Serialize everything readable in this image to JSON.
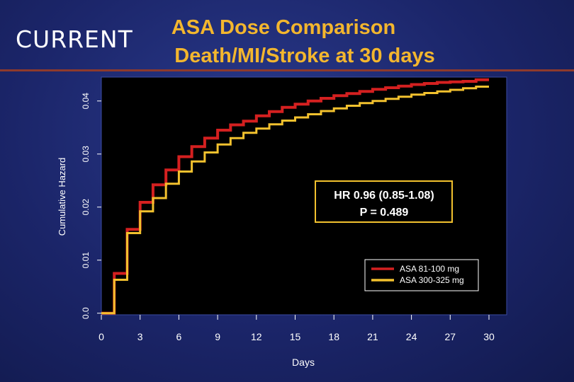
{
  "header": {
    "logo_text": "CURRENT",
    "title_line1": "ASA Dose Comparison",
    "title_line2": "Death/MI/Stroke at 30 days"
  },
  "colors": {
    "background": "#1b2569",
    "title": "#f3b62e",
    "series_red": "#d42020",
    "series_yellow": "#f2c12e",
    "plot_bg": "#000000"
  },
  "chart_data": {
    "type": "line",
    "step": true,
    "xlabel": "Days",
    "ylabel": "Cumulative Hazard",
    "xlim": [
      0,
      30
    ],
    "ylim": [
      -0.0003,
      0.0445
    ],
    "xticks": [
      "0",
      "3",
      "6",
      "9",
      "12",
      "15",
      "18",
      "21",
      "24",
      "27",
      "30"
    ],
    "yticks": [
      "0.0",
      "0.01",
      "0.02",
      "0.03",
      "0.04"
    ],
    "annotation": {
      "line1": "HR 0.96 (0.85-1.08)",
      "line2": "P = 0.489"
    },
    "legend_position": "bottom-right",
    "series": [
      {
        "name": "ASA 81-100 mg",
        "color": "#d42020",
        "x": [
          0,
          1,
          2,
          3,
          4,
          5,
          6,
          7,
          8,
          9,
          10,
          11,
          12,
          13,
          14,
          15,
          16,
          17,
          18,
          19,
          20,
          21,
          22,
          23,
          24,
          25,
          26,
          27,
          28,
          29,
          30
        ],
        "y": [
          0.0,
          0.0075,
          0.0158,
          0.0209,
          0.0242,
          0.027,
          0.0295,
          0.0314,
          0.033,
          0.0345,
          0.0355,
          0.0362,
          0.0372,
          0.038,
          0.0388,
          0.0394,
          0.04,
          0.0405,
          0.041,
          0.0414,
          0.0418,
          0.0422,
          0.0425,
          0.0428,
          0.0431,
          0.0433,
          0.0435,
          0.0436,
          0.0437,
          0.044,
          0.044
        ]
      },
      {
        "name": "ASA 300-325 mg",
        "color": "#f2c12e",
        "x": [
          0,
          1,
          2,
          3,
          4,
          5,
          6,
          7,
          8,
          9,
          10,
          11,
          12,
          13,
          14,
          15,
          16,
          17,
          18,
          19,
          20,
          21,
          22,
          23,
          24,
          25,
          26,
          27,
          28,
          29,
          30
        ],
        "y": [
          0.0,
          0.0063,
          0.0151,
          0.0192,
          0.0217,
          0.0244,
          0.0267,
          0.0286,
          0.0303,
          0.0318,
          0.033,
          0.034,
          0.0348,
          0.0356,
          0.0363,
          0.0369,
          0.0375,
          0.0381,
          0.0386,
          0.0391,
          0.0396,
          0.04,
          0.0404,
          0.0408,
          0.0412,
          0.0415,
          0.0418,
          0.0421,
          0.0424,
          0.0427,
          0.0427
        ]
      }
    ]
  }
}
